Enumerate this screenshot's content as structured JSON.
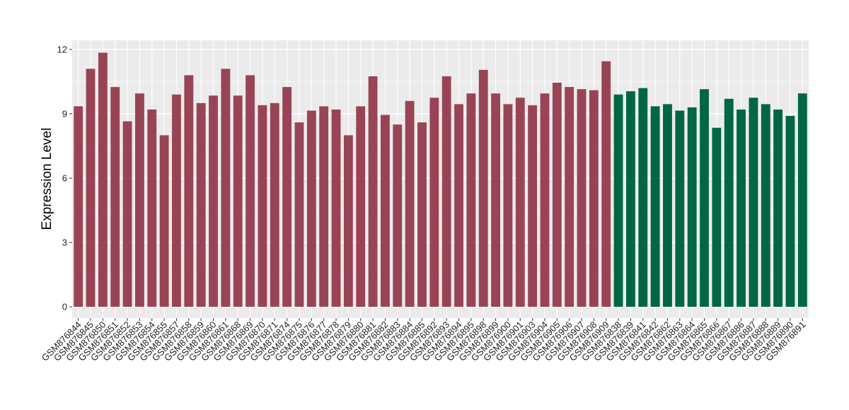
{
  "chart_data": {
    "type": "bar",
    "title": "",
    "xlabel": "",
    "ylabel": "Expression Level",
    "ylim": [
      0,
      12
    ],
    "yticks": [
      0,
      3,
      6,
      9,
      12
    ],
    "grid": true,
    "legend": "none",
    "categories": [
      "GSM876844",
      "GSM876845",
      "GSM876850",
      "GSM876851",
      "GSM876852",
      "GSM876853",
      "GSM876854",
      "GSM876855",
      "GSM876857",
      "GSM876858",
      "GSM876859",
      "GSM876860",
      "GSM876861",
      "GSM876868",
      "GSM876869",
      "GSM876870",
      "GSM876871",
      "GSM876874",
      "GSM876875",
      "GSM876876",
      "GSM876877",
      "GSM876878",
      "GSM876879",
      "GSM876880",
      "GSM876881",
      "GSM876882",
      "GSM876883",
      "GSM876884",
      "GSM876885",
      "GSM876892",
      "GSM876893",
      "GSM876894",
      "GSM876895",
      "GSM876898",
      "GSM876899",
      "GSM876900",
      "GSM876901",
      "GSM876903",
      "GSM876904",
      "GSM876905",
      "GSM876906",
      "GSM876907",
      "GSM876908",
      "GSM876909",
      "GSM876838",
      "GSM876839",
      "GSM876841",
      "GSM876842",
      "GSM876862",
      "GSM876863",
      "GSM876864",
      "GSM876865",
      "GSM876866",
      "GSM876867",
      "GSM876886",
      "GSM876887",
      "GSM876888",
      "GSM876889",
      "GSM876890",
      "GSM876891"
    ],
    "values": [
      9.35,
      11.1,
      11.85,
      10.25,
      8.65,
      9.95,
      9.2,
      8.0,
      9.9,
      10.8,
      9.5,
      9.85,
      11.1,
      9.85,
      10.8,
      9.4,
      9.5,
      10.25,
      8.6,
      9.15,
      9.35,
      9.2,
      8.0,
      9.35,
      10.75,
      8.95,
      8.5,
      9.6,
      8.6,
      9.75,
      10.75,
      9.45,
      9.95,
      11.05,
      9.95,
      9.45,
      9.75,
      9.4,
      9.95,
      10.45,
      10.25,
      10.15,
      10.1,
      11.45,
      9.9,
      10.05,
      10.2,
      9.35,
      9.45,
      9.15,
      9.3,
      10.15,
      8.35,
      9.7,
      9.2,
      9.75,
      9.45,
      9.2,
      8.9,
      9.95
    ],
    "groups": [
      {
        "count": 44,
        "color": "#994455"
      },
      {
        "count": 16,
        "color": "#006644"
      }
    ],
    "colors": {
      "panel": "#ebebeb",
      "grid": "#ffffff",
      "axis_text": "#222222"
    }
  }
}
